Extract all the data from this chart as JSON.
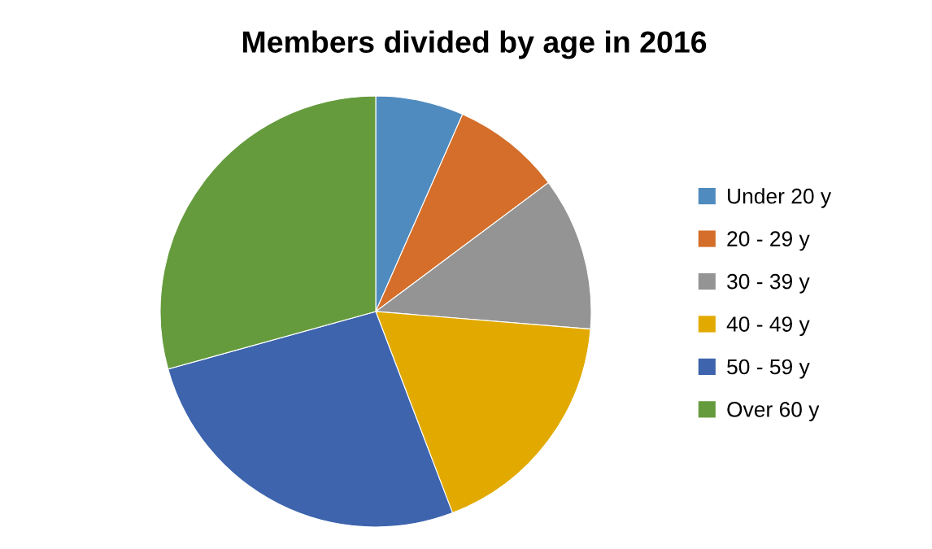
{
  "chart_data": {
    "type": "pie",
    "title": "Members divided by age in 2016",
    "categories": [
      "Under 20 y",
      "20 - 29 y",
      "30 - 39 y",
      "40 - 49 y",
      "50 - 59 y",
      "Over 60 y"
    ],
    "values": [
      6.6,
      8.2,
      11.5,
      17.9,
      26.5,
      29.3
    ],
    "colors": [
      "#4f8bbf",
      "#d46e2a",
      "#949494",
      "#e2aa00",
      "#3d64ad",
      "#659b3d"
    ],
    "legend": "right"
  }
}
